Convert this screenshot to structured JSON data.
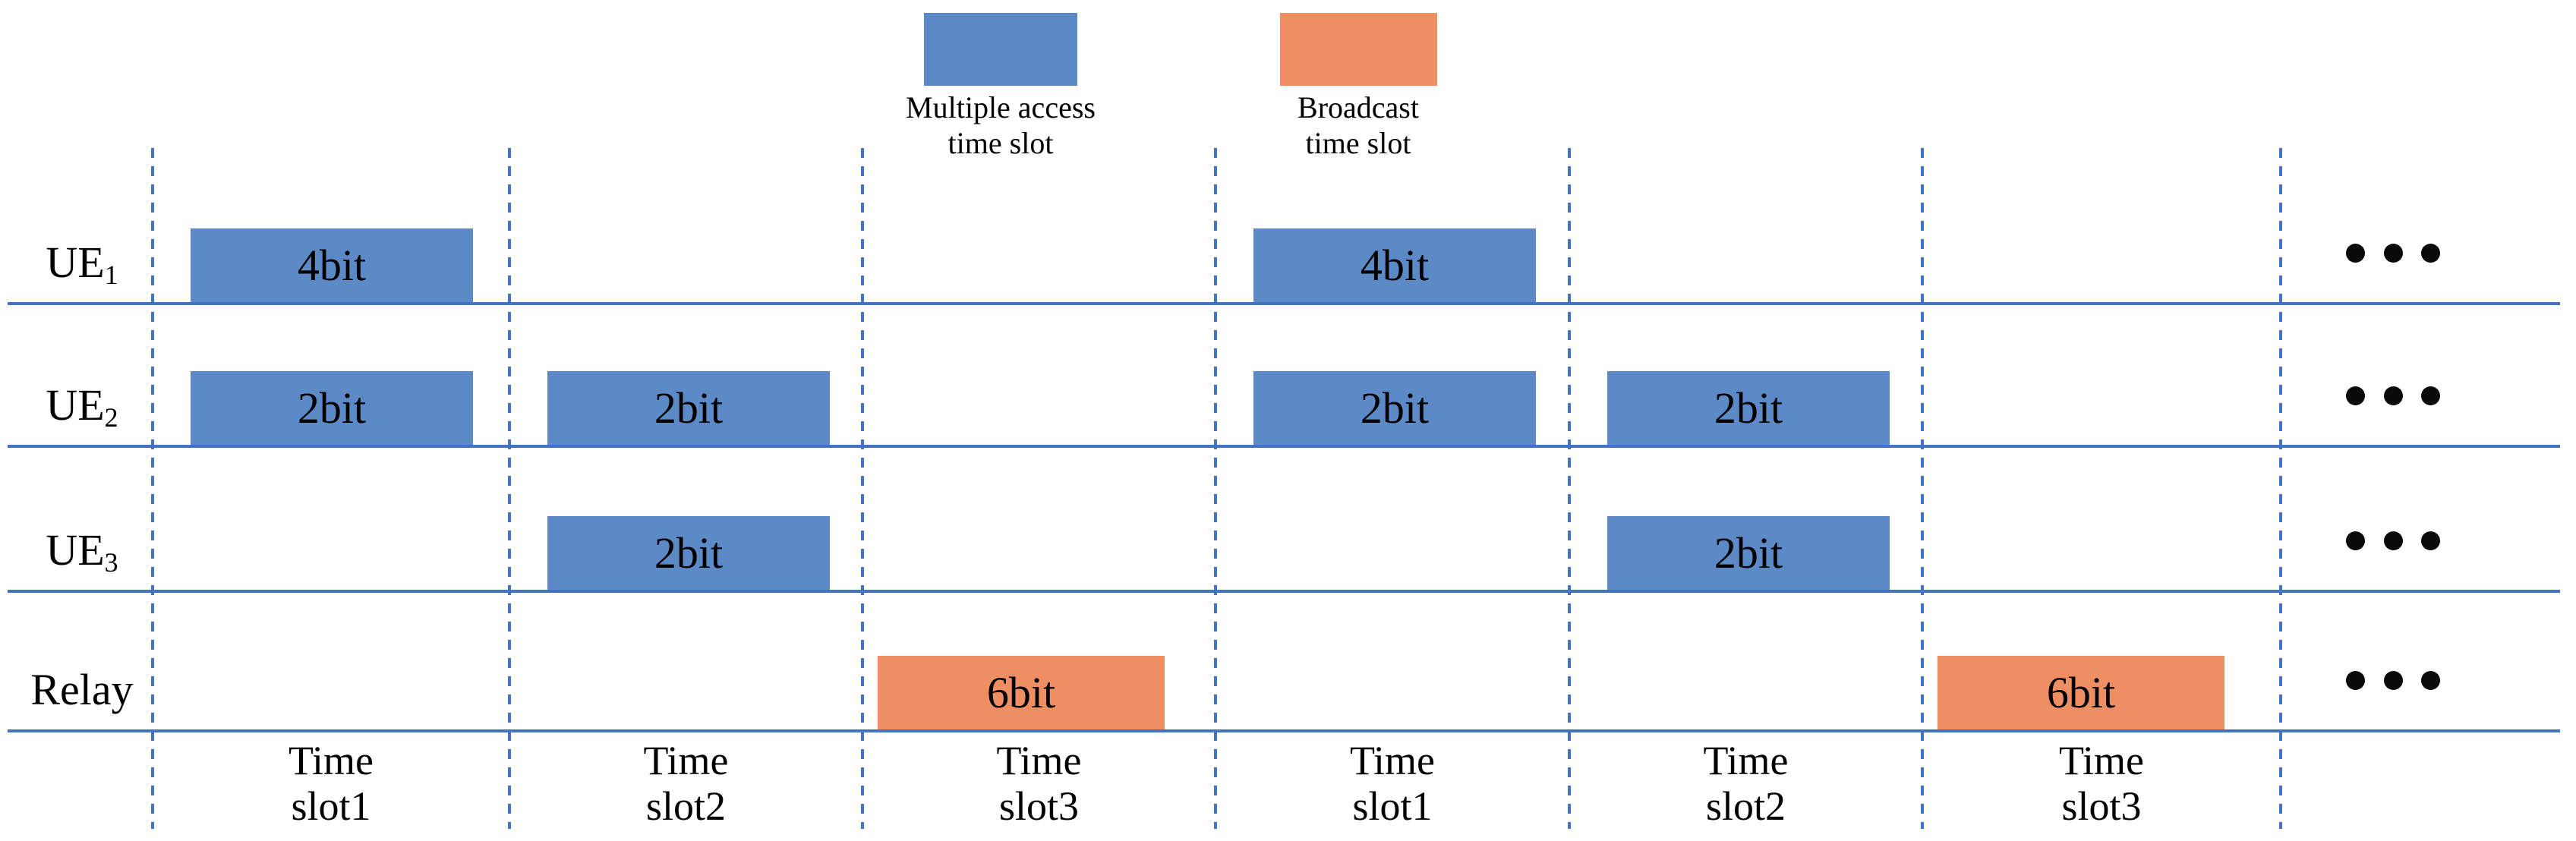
{
  "legend": {
    "items": [
      {
        "id": "multiple-access",
        "line1": "Multiple access",
        "line2": "time slot",
        "type": "multiple_access"
      },
      {
        "id": "broadcast",
        "line1": "Broadcast",
        "line2": "time slot",
        "type": "broadcast"
      }
    ]
  },
  "rows": [
    {
      "id": "ue1",
      "label_base": "UE",
      "label_sub": "1",
      "bars": [
        {
          "slot": 1,
          "label": "4bit",
          "type": "multiple_access"
        },
        {
          "slot": 4,
          "label": "4bit",
          "type": "multiple_access"
        }
      ]
    },
    {
      "id": "ue2",
      "label_base": "UE",
      "label_sub": "2",
      "bars": [
        {
          "slot": 1,
          "label": "2bit",
          "type": "multiple_access"
        },
        {
          "slot": 2,
          "label": "2bit",
          "type": "multiple_access"
        },
        {
          "slot": 4,
          "label": "2bit",
          "type": "multiple_access"
        },
        {
          "slot": 5,
          "label": "2bit",
          "type": "multiple_access"
        }
      ]
    },
    {
      "id": "ue3",
      "label_base": "UE",
      "label_sub": "3",
      "bars": [
        {
          "slot": 2,
          "label": "2bit",
          "type": "multiple_access"
        },
        {
          "slot": 5,
          "label": "2bit",
          "type": "multiple_access"
        }
      ]
    },
    {
      "id": "relay",
      "label_base": "Relay",
      "label_sub": "",
      "bars": [
        {
          "slot": 3,
          "label": "6bit",
          "type": "broadcast"
        },
        {
          "slot": 6,
          "label": "6bit",
          "type": "broadcast"
        }
      ]
    }
  ],
  "time_slots": [
    {
      "line1": "Time",
      "line2": "slot1"
    },
    {
      "line1": "Time",
      "line2": "slot2"
    },
    {
      "line1": "Time",
      "line2": "slot3"
    },
    {
      "line1": "Time",
      "line2": "slot1"
    },
    {
      "line1": "Time",
      "line2": "slot2"
    },
    {
      "line1": "Time",
      "line2": "slot3"
    }
  ],
  "ellipsis": {
    "dots": 3,
    "icon": "ellipsis-icon"
  },
  "colors": {
    "multiple_access": "#5b8ac6",
    "broadcast": "#ed8f62",
    "grid_line": "#4472c4",
    "text": "#000000",
    "background": "#ffffff"
  }
}
